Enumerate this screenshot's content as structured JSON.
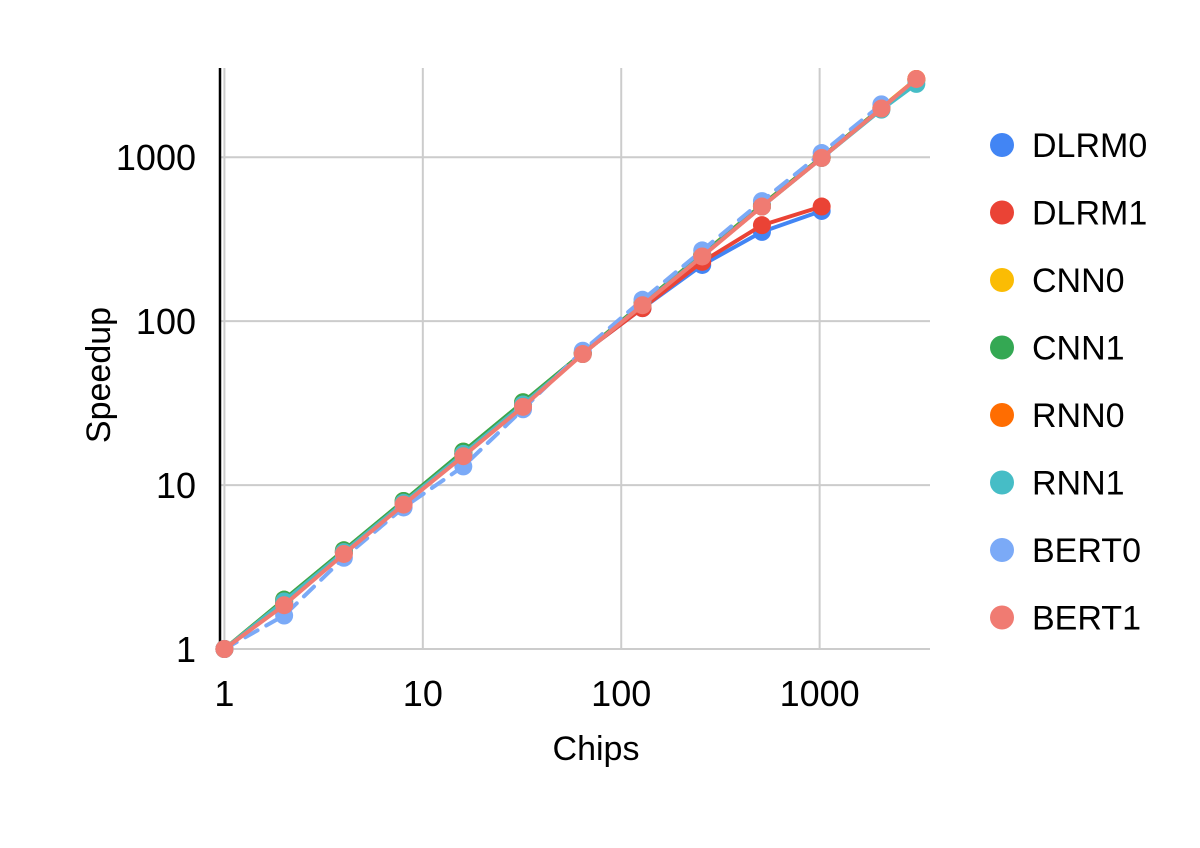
{
  "chart_data": {
    "type": "line",
    "title": "",
    "xlabel": "Chips",
    "ylabel": "Speedup",
    "x_scale": "log",
    "y_scale": "log",
    "xlim": [
      0.95,
      3600
    ],
    "ylim": [
      1,
      3500
    ],
    "x_ticks": [
      1,
      10,
      100,
      1000
    ],
    "x_tick_labels": [
      "1",
      "10",
      "100",
      "1000"
    ],
    "y_ticks": [
      1,
      10,
      100,
      1000
    ],
    "y_tick_labels": [
      "1",
      "10",
      "100",
      "1000"
    ],
    "grid": true,
    "legend_position": "right",
    "series": [
      {
        "name": "DLRM0",
        "color": "#4285F4",
        "dashed": false,
        "points": [
          [
            1,
            1
          ],
          [
            2,
            1.9
          ],
          [
            4,
            3.9
          ],
          [
            8,
            7.8
          ],
          [
            16,
            15.5
          ],
          [
            32,
            31
          ],
          [
            64,
            64
          ],
          [
            128,
            120
          ],
          [
            256,
            220
          ],
          [
            512,
            350
          ],
          [
            1024,
            470
          ]
        ]
      },
      {
        "name": "DLRM1",
        "color": "#EA4335",
        "dashed": false,
        "points": [
          [
            1,
            1
          ],
          [
            2,
            1.9
          ],
          [
            4,
            3.9
          ],
          [
            8,
            7.8
          ],
          [
            16,
            15.5
          ],
          [
            32,
            31
          ],
          [
            64,
            64
          ],
          [
            128,
            120
          ],
          [
            256,
            230
          ],
          [
            512,
            385
          ],
          [
            1024,
            500
          ]
        ]
      },
      {
        "name": "CNN0",
        "color": "#FBBC04",
        "dashed": false,
        "points": [
          [
            1,
            1
          ],
          [
            2,
            2
          ],
          [
            4,
            4
          ],
          [
            8,
            8
          ],
          [
            16,
            16
          ],
          [
            32,
            32
          ],
          [
            64,
            64
          ],
          [
            128,
            128
          ],
          [
            256,
            256
          ],
          [
            512,
            512
          ],
          [
            1024,
            1000
          ],
          [
            2048,
            2000
          ],
          [
            3072,
            3000
          ]
        ]
      },
      {
        "name": "CNN1",
        "color": "#34A853",
        "dashed": false,
        "points": [
          [
            1,
            1
          ],
          [
            2,
            2
          ],
          [
            4,
            4
          ],
          [
            8,
            8
          ],
          [
            16,
            16
          ],
          [
            32,
            32
          ],
          [
            64,
            64
          ],
          [
            128,
            128
          ],
          [
            256,
            255
          ],
          [
            512,
            510
          ],
          [
            1024,
            1000
          ],
          [
            2048,
            2000
          ],
          [
            3072,
            2950
          ]
        ]
      },
      {
        "name": "RNN0",
        "color": "#FF6D01",
        "dashed": false,
        "points": [
          [
            1,
            1
          ],
          [
            2,
            1.95
          ],
          [
            4,
            3.9
          ],
          [
            8,
            7.8
          ],
          [
            16,
            15.5
          ],
          [
            32,
            31
          ],
          [
            64,
            63
          ],
          [
            128,
            126
          ],
          [
            256,
            250
          ],
          [
            512,
            500
          ],
          [
            1024,
            990
          ],
          [
            2048,
            1980
          ],
          [
            3072,
            3000
          ]
        ]
      },
      {
        "name": "RNN1",
        "color": "#46BDC6",
        "dashed": false,
        "points": [
          [
            1,
            1
          ],
          [
            2,
            1.95
          ],
          [
            4,
            3.9
          ],
          [
            8,
            7.8
          ],
          [
            16,
            15.5
          ],
          [
            32,
            31
          ],
          [
            64,
            63
          ],
          [
            128,
            126
          ],
          [
            256,
            250
          ],
          [
            512,
            500
          ],
          [
            1024,
            990
          ],
          [
            2048,
            1950
          ],
          [
            3072,
            2800
          ]
        ]
      },
      {
        "name": "BERT0",
        "color": "#7BAAF7",
        "dashed": true,
        "points": [
          [
            1,
            1
          ],
          [
            2,
            1.6
          ],
          [
            4,
            3.6
          ],
          [
            8,
            7.3
          ],
          [
            16,
            13
          ],
          [
            32,
            29
          ],
          [
            64,
            66
          ],
          [
            128,
            135
          ],
          [
            256,
            270
          ],
          [
            512,
            540
          ],
          [
            1024,
            1060
          ],
          [
            2048,
            2100
          ]
        ]
      },
      {
        "name": "BERT1",
        "color": "#F07B72",
        "dashed": false,
        "points": [
          [
            1,
            1
          ],
          [
            2,
            1.85
          ],
          [
            4,
            3.8
          ],
          [
            8,
            7.6
          ],
          [
            16,
            15
          ],
          [
            32,
            30
          ],
          [
            64,
            63
          ],
          [
            128,
            125
          ],
          [
            256,
            248
          ],
          [
            512,
            500
          ],
          [
            1024,
            990
          ],
          [
            2048,
            1980
          ],
          [
            3072,
            3000
          ]
        ]
      }
    ]
  }
}
